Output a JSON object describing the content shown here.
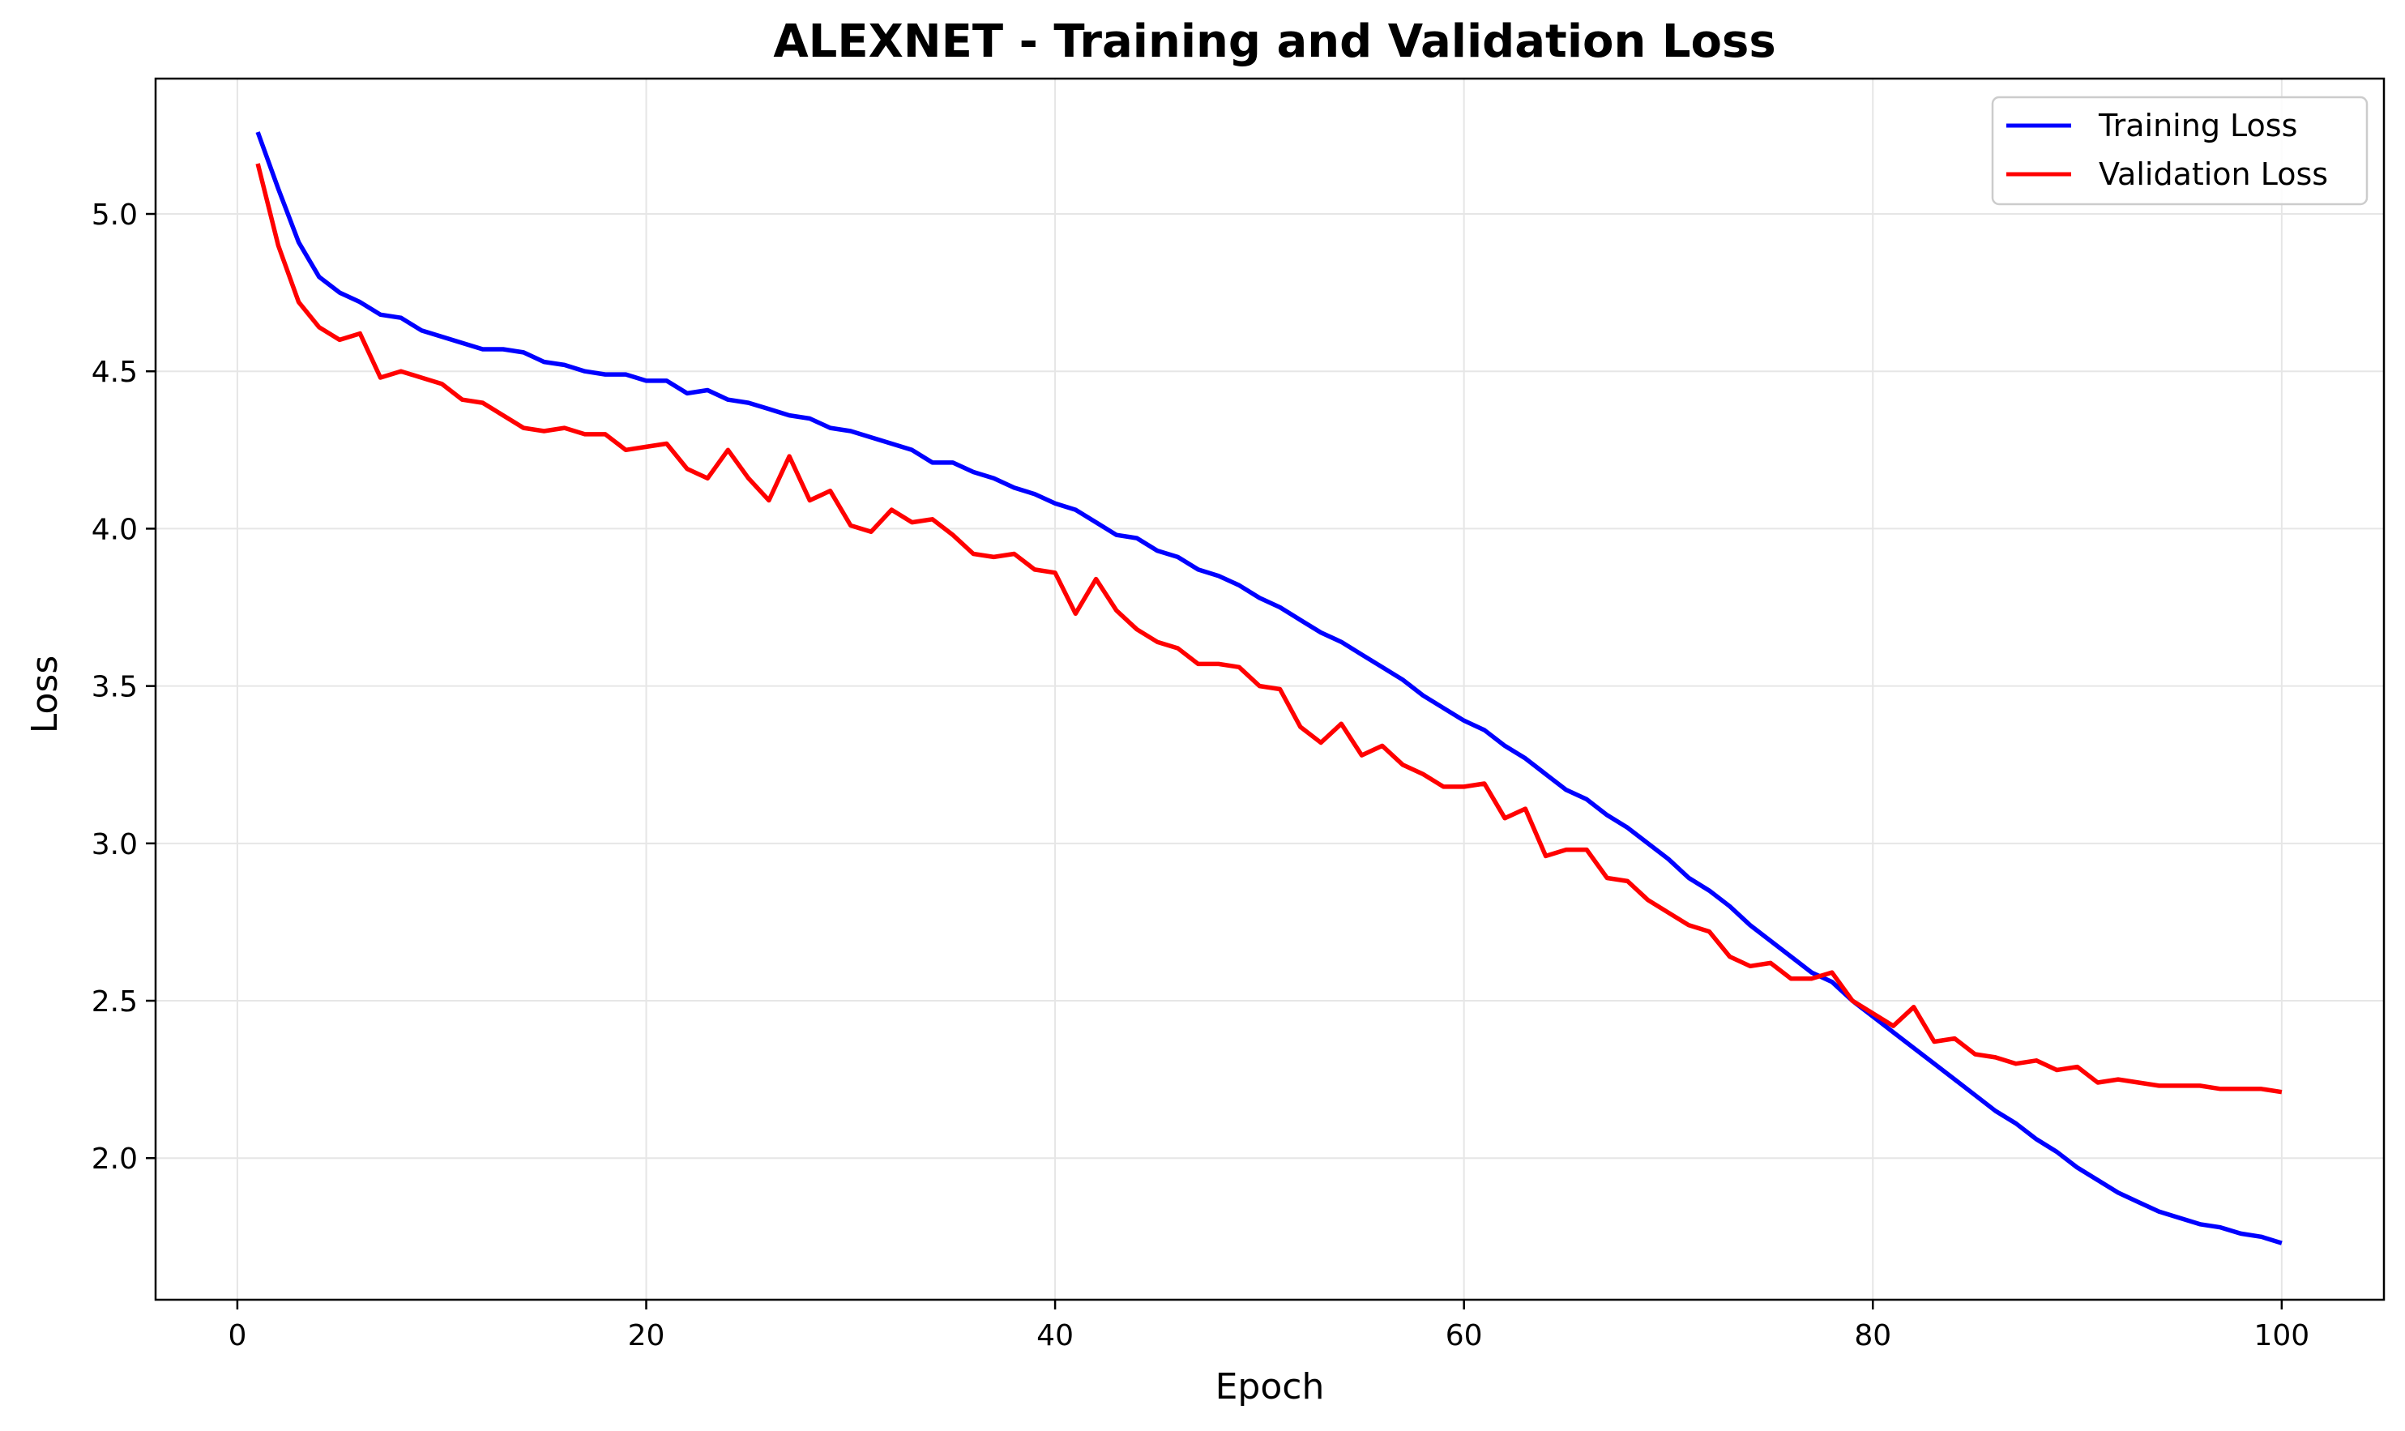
{
  "chart_data": {
    "type": "line",
    "title": "ALEXNET - Training and Validation Loss",
    "xlabel": "Epoch",
    "ylabel": "Loss",
    "xlim": [
      -4,
      105
    ],
    "ylim": [
      1.55,
      5.43
    ],
    "xticks": [
      0,
      20,
      40,
      60,
      80,
      100
    ],
    "yticks": [
      2.0,
      2.5,
      3.0,
      3.5,
      4.0,
      4.5,
      5.0
    ],
    "ytick_labels": [
      "2.0",
      "2.5",
      "3.0",
      "3.5",
      "4.0",
      "4.5",
      "5.0"
    ],
    "grid": true,
    "legend_position": "top-right",
    "x": [
      1,
      2,
      3,
      4,
      5,
      6,
      7,
      8,
      9,
      10,
      11,
      12,
      13,
      14,
      15,
      16,
      17,
      18,
      19,
      20,
      21,
      22,
      23,
      24,
      25,
      26,
      27,
      28,
      29,
      30,
      31,
      32,
      33,
      34,
      35,
      36,
      37,
      38,
      39,
      40,
      41,
      42,
      43,
      44,
      45,
      46,
      47,
      48,
      49,
      50,
      51,
      52,
      53,
      54,
      55,
      56,
      57,
      58,
      59,
      60,
      61,
      62,
      63,
      64,
      65,
      66,
      67,
      68,
      69,
      70,
      71,
      72,
      73,
      74,
      75,
      76,
      77,
      78,
      79,
      80,
      81,
      82,
      83,
      84,
      85,
      86,
      87,
      88,
      89,
      90,
      91,
      92,
      93,
      94,
      95,
      96,
      97,
      98,
      99,
      100
    ],
    "series": [
      {
        "name": "Training Loss",
        "color": "#0000ff",
        "values": [
          5.26,
          5.08,
          4.91,
          4.8,
          4.75,
          4.72,
          4.68,
          4.67,
          4.63,
          4.61,
          4.59,
          4.57,
          4.57,
          4.56,
          4.53,
          4.52,
          4.5,
          4.49,
          4.49,
          4.47,
          4.47,
          4.43,
          4.44,
          4.41,
          4.4,
          4.38,
          4.36,
          4.35,
          4.32,
          4.31,
          4.29,
          4.27,
          4.25,
          4.21,
          4.21,
          4.18,
          4.16,
          4.13,
          4.11,
          4.08,
          4.06,
          4.02,
          3.98,
          3.97,
          3.93,
          3.91,
          3.87,
          3.85,
          3.82,
          3.78,
          3.75,
          3.71,
          3.67,
          3.64,
          3.6,
          3.56,
          3.52,
          3.47,
          3.43,
          3.39,
          3.36,
          3.31,
          3.27,
          3.22,
          3.17,
          3.14,
          3.09,
          3.05,
          3.0,
          2.95,
          2.89,
          2.85,
          2.8,
          2.74,
          2.69,
          2.64,
          2.59,
          2.56,
          2.5,
          2.45,
          2.4,
          2.35,
          2.3,
          2.25,
          2.2,
          2.15,
          2.11,
          2.06,
          2.02,
          1.97,
          1.93,
          1.89,
          1.86,
          1.83,
          1.81,
          1.79,
          1.78,
          1.76,
          1.75,
          1.73
        ]
      },
      {
        "name": "Validation Loss",
        "color": "#ff0000",
        "values": [
          5.16,
          4.9,
          4.72,
          4.64,
          4.6,
          4.62,
          4.48,
          4.5,
          4.48,
          4.46,
          4.41,
          4.4,
          4.36,
          4.32,
          4.31,
          4.32,
          4.3,
          4.3,
          4.25,
          4.26,
          4.27,
          4.19,
          4.16,
          4.25,
          4.16,
          4.09,
          4.23,
          4.09,
          4.12,
          4.01,
          3.99,
          4.06,
          4.02,
          4.03,
          3.98,
          3.92,
          3.91,
          3.92,
          3.87,
          3.86,
          3.73,
          3.84,
          3.74,
          3.68,
          3.64,
          3.62,
          3.57,
          3.57,
          3.56,
          3.5,
          3.49,
          3.37,
          3.32,
          3.38,
          3.28,
          3.31,
          3.25,
          3.22,
          3.18,
          3.18,
          3.19,
          3.08,
          3.11,
          2.96,
          2.98,
          2.98,
          2.89,
          2.88,
          2.82,
          2.78,
          2.74,
          2.72,
          2.64,
          2.61,
          2.62,
          2.57,
          2.57,
          2.59,
          2.5,
          2.46,
          2.42,
          2.48,
          2.37,
          2.38,
          2.33,
          2.32,
          2.3,
          2.31,
          2.28,
          2.29,
          2.24,
          2.25,
          2.24,
          2.23,
          2.23,
          2.23,
          2.22,
          2.22,
          2.22,
          2.21
        ]
      }
    ]
  }
}
